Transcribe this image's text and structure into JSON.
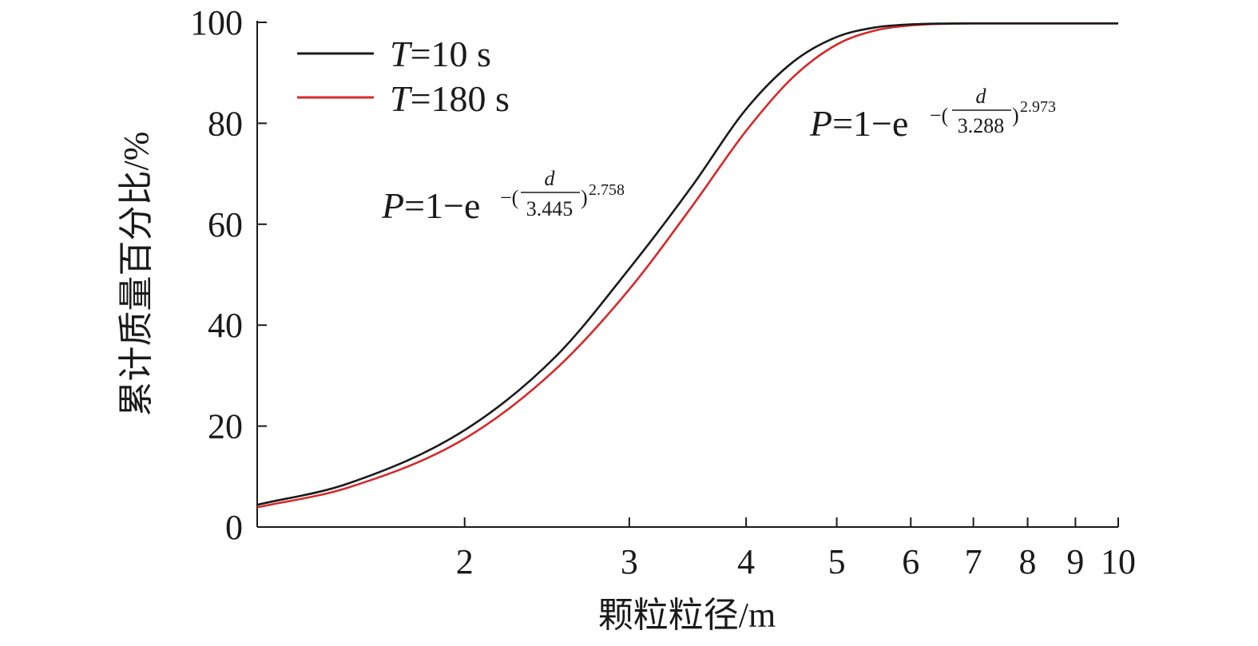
{
  "chart_data": {
    "type": "line",
    "title": "",
    "xlabel": "颗粒粒径/m",
    "ylabel": "累计质量百分比/%",
    "x_scale": "log",
    "xlim": [
      1.2,
      10
    ],
    "ylim": [
      0,
      100
    ],
    "x_ticks": [
      2,
      3,
      4,
      5,
      6,
      7,
      8,
      9,
      10
    ],
    "x_tick_labels": [
      "2",
      "3",
      "4",
      "5",
      "6",
      "7",
      "8",
      "9",
      "10"
    ],
    "y_ticks": [
      0,
      20,
      40,
      60,
      80,
      100
    ],
    "y_tick_labels": [
      "0",
      "20",
      "40",
      "60",
      "80",
      "100"
    ],
    "grid": false,
    "legend_position": "top-left",
    "series": [
      {
        "name": "T=10 s",
        "legend_italic": "T",
        "legend_rest": "=10 s",
        "color": "#1a1a1a",
        "x": [
          1.2,
          1.5,
          2.0,
          2.5,
          3.0,
          3.5,
          4.0,
          4.5,
          5.0,
          5.5,
          6.0,
          7.0,
          8.0,
          10.0
        ],
        "y": [
          4.4,
          8.6,
          19.2,
          33.7,
          51.2,
          67.5,
          82.8,
          92.3,
          97.1,
          99.0,
          99.6,
          99.8,
          99.8,
          99.8
        ]
      },
      {
        "name": "T=180 s",
        "legend_italic": "T",
        "legend_rest": "=180 s",
        "color": "#d42a2a",
        "x": [
          1.2,
          1.5,
          2.0,
          2.5,
          3.0,
          3.5,
          4.0,
          4.5,
          5.0,
          5.5,
          6.0,
          7.0,
          8.0,
          10.0
        ],
        "y": [
          3.9,
          7.8,
          17.5,
          31.2,
          47.1,
          63.5,
          78.5,
          89.3,
          95.6,
          98.4,
          99.4,
          99.8,
          99.8,
          99.8
        ]
      }
    ],
    "annotations": [
      {
        "italic": "P",
        "prefix": "=1−e",
        "sign": "−(",
        "numerator": "d",
        "denominator": "3.445",
        "close": ")",
        "exponent": "2.758"
      },
      {
        "italic": "P",
        "prefix": "=1−e",
        "sign": "−(",
        "numerator": "d",
        "denominator": "3.288",
        "close": ")",
        "exponent": "2.973"
      }
    ]
  }
}
